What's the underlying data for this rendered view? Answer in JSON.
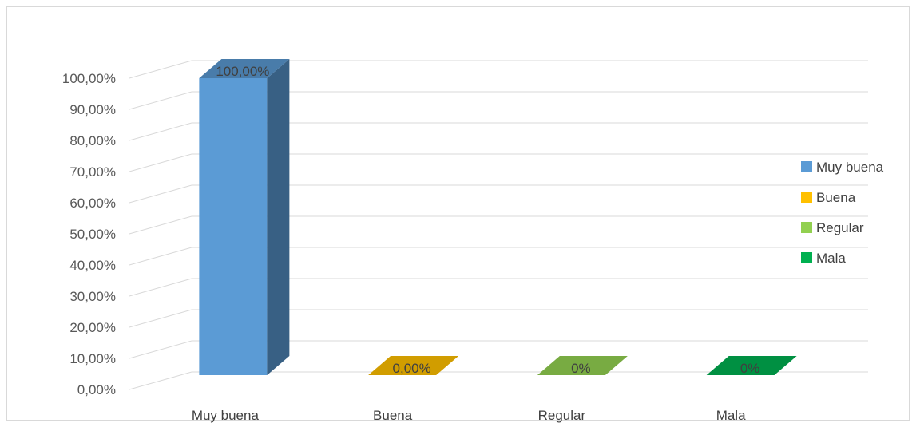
{
  "chart_data": {
    "type": "bar",
    "style": "3d-column",
    "categories": [
      "Muy buena",
      "Buena",
      "Regular",
      "Mala"
    ],
    "values": [
      100,
      0,
      0,
      0
    ],
    "data_labels": [
      "100,00%",
      "0,00%",
      "0%",
      "0%"
    ],
    "colors": [
      "#5b9bd5",
      "#ffc000",
      "#92d050",
      "#00b050"
    ],
    "yticks": [
      "0,00%",
      "10,00%",
      "20,00%",
      "30,00%",
      "40,00%",
      "50,00%",
      "60,00%",
      "70,00%",
      "80,00%",
      "90,00%",
      "100,00%"
    ],
    "ylim": [
      0,
      100
    ],
    "grid": true,
    "legend": {
      "position": "right",
      "entries": [
        "Muy buena",
        "Buena",
        "Regular",
        "Mala"
      ]
    }
  }
}
